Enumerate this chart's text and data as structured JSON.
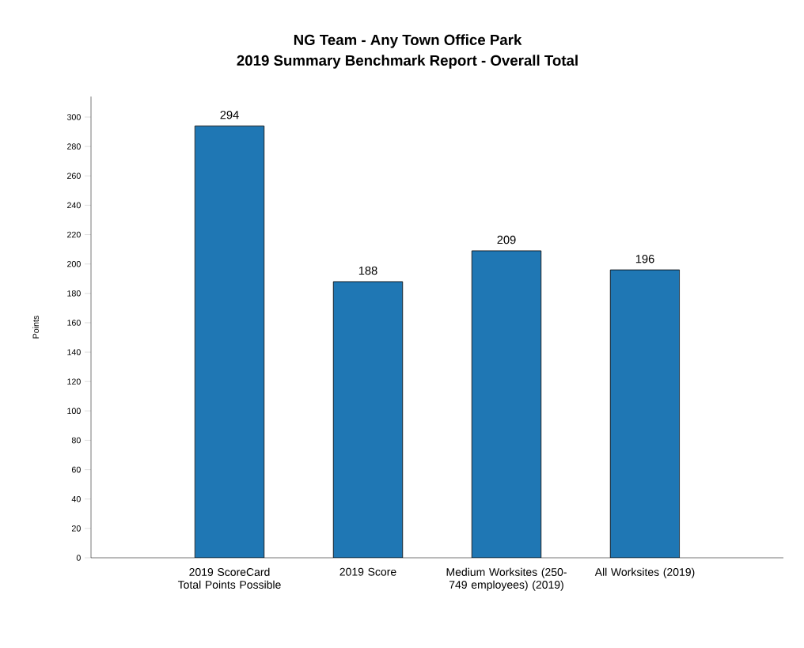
{
  "chart_data": {
    "type": "bar",
    "title": "NG Team - Any Town Office Park",
    "subtitle": "2019 Summary Benchmark Report - Overall Total",
    "ylabel": "Points",
    "categories": [
      "2019 ScoreCard Total Points Possible",
      "2019 Score",
      "Medium Worksites (250-749 employees) (2019)",
      "All Worksites (2019)"
    ],
    "values": [
      294,
      188,
      209,
      196
    ],
    "color": "#1f77b4",
    "data_labels": true,
    "ylim": [
      0,
      314
    ],
    "yticks": [
      0,
      20,
      40,
      60,
      80,
      100,
      120,
      140,
      160,
      180,
      200,
      220,
      240,
      260,
      280,
      300
    ]
  }
}
